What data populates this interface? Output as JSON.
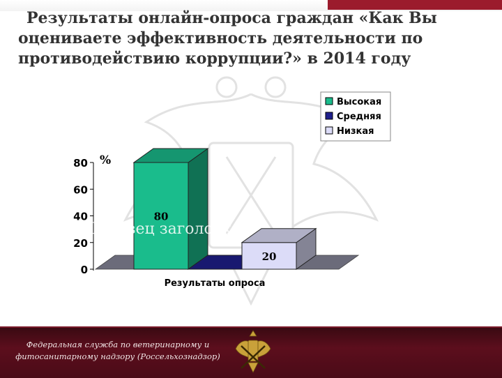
{
  "slide": {
    "title_line1": "Результаты онлайн-опроса граждан «Как Вы",
    "title_line2": "оцениваете эффективность деятельности по",
    "title_line3": "противодействию коррупции?» в 2014 году",
    "watermark": "Образец заголовка",
    "footer_line1": "Федеральная служба по ветеринарному и",
    "footer_line2": "фитосанитарному надзору (Россельхознадзор)"
  },
  "colors": {
    "accent": "#9b1b2c",
    "footer_bg": "#4a0b17",
    "high": "#1abc8c",
    "medium": "#1f1f8c",
    "low": "#dcdcf8",
    "floor": "#6b6b7a"
  },
  "chart_data": {
    "type": "bar",
    "style": "3d",
    "categories": [
      "Результаты опроса"
    ],
    "series": [
      {
        "name": "Высокая",
        "values": [
          80
        ],
        "color": "#1abc8c"
      },
      {
        "name": "Средняя",
        "values": [
          0
        ],
        "color": "#1f1f8c"
      },
      {
        "name": "Низкая",
        "values": [
          20
        ],
        "color": "#dcdcf8"
      }
    ],
    "data_labels": [
      "80",
      "",
      "20"
    ],
    "ylabel": "%",
    "xlabel": "Результаты опроса",
    "ylim": [
      0,
      80
    ],
    "yticks": [
      "0",
      "20",
      "40",
      "60",
      "80"
    ],
    "legend_position": "top-right",
    "grid": false
  }
}
